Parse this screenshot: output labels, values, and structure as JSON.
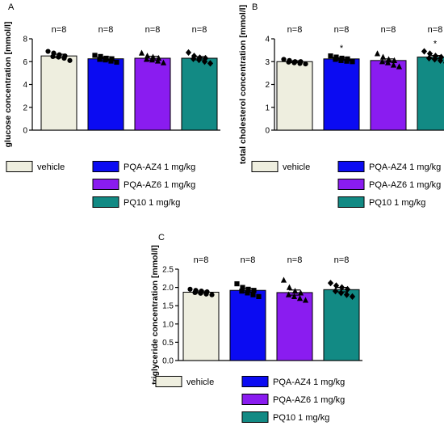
{
  "chart_data": [
    {
      "type": "bar",
      "panel_label": "A",
      "categories": [
        "vehicle",
        "PQA-AZ4 1 mg/kg",
        "PQA-AZ6 1 mg/kg",
        "PQ10 1 mg/kg"
      ],
      "values": [
        6.5,
        6.25,
        6.3,
        6.3
      ],
      "sem": [
        0.15,
        0.17,
        0.17,
        0.14
      ],
      "n_labels": [
        "n=8",
        "n=8",
        "n=8",
        "n=8"
      ],
      "significance": [
        "",
        "",
        "",
        ""
      ],
      "ylabel": "glucose concentration [mmol/l]",
      "ylim": [
        0,
        8
      ],
      "yticks": [
        "0",
        "2",
        "4",
        "6",
        "8"
      ],
      "ytick_values": [
        0,
        2,
        4,
        6,
        8
      ],
      "points": [
        [
          6.9,
          6.75,
          6.6,
          6.5,
          6.45,
          6.4,
          6.3,
          6.1
        ],
        [
          6.55,
          6.45,
          6.3,
          6.25,
          6.2,
          6.15,
          6.05,
          5.95
        ],
        [
          6.75,
          6.5,
          6.4,
          6.3,
          6.2,
          6.15,
          6.05,
          5.9
        ],
        [
          6.8,
          6.5,
          6.35,
          6.3,
          6.25,
          6.15,
          6.0,
          5.85
        ]
      ],
      "legend": [
        "vehicle",
        "PQA-AZ4 1 mg/kg",
        "PQA-AZ6 1 mg/kg",
        "PQ10 1 mg/kg"
      ],
      "grid": false
    },
    {
      "type": "bar",
      "panel_label": "B",
      "categories": [
        "vehicle",
        "PQA-AZ4 1 mg/kg",
        "PQA-AZ6 1 mg/kg",
        "PQ10 1 mg/kg"
      ],
      "values": [
        3.0,
        3.12,
        3.05,
        3.2
      ],
      "sem": [
        0.04,
        0.05,
        0.07,
        0.07
      ],
      "n_labels": [
        "n=8",
        "n=8",
        "n=8",
        "n=8"
      ],
      "significance": [
        "",
        "*",
        "",
        "*"
      ],
      "ylabel": "total cholesterol concentration [mmol/l]",
      "ylim": [
        0,
        4
      ],
      "yticks": [
        "0",
        "1",
        "2",
        "3",
        "4"
      ],
      "ytick_values": [
        0,
        1,
        2,
        3,
        4
      ],
      "points": [
        [
          3.1,
          3.05,
          3.0,
          3.0,
          2.98,
          2.95,
          2.92,
          2.9
        ],
        [
          3.25,
          3.2,
          3.15,
          3.12,
          3.1,
          3.05,
          3.02,
          3.0
        ],
        [
          3.35,
          3.2,
          3.1,
          3.05,
          3.0,
          2.95,
          2.85,
          2.78
        ],
        [
          3.45,
          3.35,
          3.25,
          3.2,
          3.15,
          3.1,
          3.05,
          2.95
        ]
      ],
      "legend": [
        "vehicle",
        "PQA-AZ4 1 mg/kg",
        "PQA-AZ6 1 mg/kg",
        "PQ10 1 mg/kg"
      ],
      "grid": false
    },
    {
      "type": "bar",
      "panel_label": "C",
      "categories": [
        "vehicle",
        "PQA-AZ4 1 mg/kg",
        "PQA-AZ6 1 mg/kg",
        "PQ10 1 mg/kg"
      ],
      "values": [
        1.87,
        1.92,
        1.86,
        1.94
      ],
      "sem": [
        0.03,
        0.05,
        0.07,
        0.06
      ],
      "n_labels": [
        "n=8",
        "n=8",
        "n=8",
        "n=8"
      ],
      "significance": [
        "",
        "",
        "",
        ""
      ],
      "ylabel": "triglyceride concentration [mmol/l]",
      "ylim": [
        0,
        2.5
      ],
      "yticks": [
        "0.0",
        "0.5",
        "1.0",
        "1.5",
        "2.0",
        "2.5"
      ],
      "ytick_values": [
        0,
        0.5,
        1.0,
        1.5,
        2.0,
        2.5
      ],
      "points": [
        [
          1.95,
          1.92,
          1.9,
          1.88,
          1.86,
          1.84,
          1.82,
          1.8
        ],
        [
          2.1,
          2.0,
          1.95,
          1.92,
          1.9,
          1.85,
          1.8,
          1.75
        ],
        [
          2.2,
          2.0,
          1.9,
          1.85,
          1.8,
          1.75,
          1.7,
          1.65
        ],
        [
          2.12,
          2.05,
          2.0,
          1.95,
          1.9,
          1.85,
          1.8,
          1.75
        ]
      ],
      "legend": [
        "vehicle",
        "PQA-AZ4 1 mg/kg",
        "PQA-AZ6 1 mg/kg",
        "PQ10 1 mg/kg"
      ],
      "grid": false
    }
  ],
  "series_colors": [
    "#eeeedf",
    "#0b0bf2",
    "#8a1cf0",
    "#128a84"
  ],
  "marker_shapes": [
    "circle",
    "square",
    "triangle-up",
    "triangle-down",
    "diamond"
  ]
}
